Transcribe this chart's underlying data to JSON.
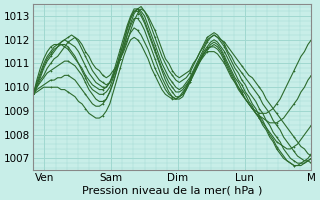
{
  "title": "",
  "xlabel": "Pression niveau de la mer( hPa )",
  "ylabel": "",
  "ylim": [
    1006.5,
    1013.5
  ],
  "xlim": [
    0,
    100
  ],
  "background_color": "#c8eee8",
  "grid_color": "#a0d8d0",
  "line_color": "#2d6b2d",
  "day_labels": [
    "Ven",
    "Sam",
    "Dim",
    "Lun",
    "M"
  ],
  "day_positions": [
    4,
    28,
    52,
    76,
    100
  ],
  "yticks": [
    1007,
    1008,
    1009,
    1010,
    1011,
    1012,
    1013
  ],
  "series": [
    [
      1009.7,
      1010.0,
      1010.3,
      1010.5,
      1010.8,
      1011.0,
      1011.2,
      1011.3,
      1011.5,
      1011.7,
      1011.9,
      1012.0,
      1012.1,
      1012.0,
      1011.8,
      1011.5,
      1011.3,
      1011.0,
      1010.8,
      1010.7,
      1010.5,
      1010.4,
      1010.5,
      1010.7,
      1010.9,
      1011.2,
      1011.5,
      1011.9,
      1012.4,
      1012.8,
      1013.1,
      1013.3,
      1013.2,
      1013.0,
      1012.7,
      1012.4,
      1012.0,
      1011.6,
      1011.2,
      1011.0,
      1010.7,
      1010.5,
      1010.4,
      1010.5,
      1010.6,
      1010.7,
      1011.0,
      1011.2,
      1011.5,
      1011.7,
      1012.0,
      1012.1,
      1012.2,
      1012.1,
      1012.0,
      1011.9,
      1011.7,
      1011.5,
      1011.3,
      1011.1,
      1010.9,
      1010.7,
      1010.5,
      1010.4,
      1010.2,
      1010.0,
      1009.8,
      1009.5,
      1009.3,
      1009.1,
      1008.9,
      1008.7,
      1008.5,
      1008.3,
      1008.1,
      1007.9,
      1007.7,
      1007.5,
      1007.4,
      1007.2,
      1007.1
    ],
    [
      1009.7,
      1010.1,
      1010.4,
      1010.8,
      1011.1,
      1011.3,
      1011.5,
      1011.7,
      1011.9,
      1012.0,
      1012.1,
      1012.2,
      1012.1,
      1011.9,
      1011.6,
      1011.3,
      1011.0,
      1010.7,
      1010.5,
      1010.3,
      1010.2,
      1010.1,
      1010.2,
      1010.5,
      1010.8,
      1011.2,
      1011.7,
      1012.2,
      1012.7,
      1013.1,
      1013.3,
      1013.4,
      1013.2,
      1012.9,
      1012.5,
      1012.1,
      1011.7,
      1011.3,
      1011.0,
      1010.7,
      1010.5,
      1010.3,
      1010.2,
      1010.3,
      1010.4,
      1010.6,
      1010.9,
      1011.2,
      1011.5,
      1011.8,
      1012.1,
      1012.2,
      1012.3,
      1012.2,
      1012.0,
      1011.8,
      1011.5,
      1011.3,
      1011.0,
      1010.8,
      1010.6,
      1010.4,
      1010.2,
      1010.0,
      1009.8,
      1009.6,
      1009.3,
      1009.1,
      1008.9,
      1008.6,
      1008.4,
      1008.2,
      1007.9,
      1007.7,
      1007.5,
      1007.3,
      1007.1,
      1007.0,
      1006.9,
      1006.9,
      1006.8
    ],
    [
      1009.7,
      1010.2,
      1010.6,
      1011.0,
      1011.3,
      1011.5,
      1011.7,
      1011.8,
      1011.9,
      1012.0,
      1011.9,
      1011.8,
      1011.7,
      1011.5,
      1011.2,
      1010.9,
      1010.6,
      1010.4,
      1010.2,
      1010.1,
      1010.0,
      1010.0,
      1010.2,
      1010.5,
      1010.9,
      1011.4,
      1011.9,
      1012.4,
      1012.9,
      1013.2,
      1013.3,
      1013.2,
      1013.0,
      1012.6,
      1012.2,
      1011.8,
      1011.4,
      1011.0,
      1010.7,
      1010.4,
      1010.2,
      1010.0,
      1009.9,
      1010.0,
      1010.2,
      1010.4,
      1010.7,
      1011.0,
      1011.3,
      1011.6,
      1011.9,
      1012.1,
      1012.2,
      1012.1,
      1011.9,
      1011.7,
      1011.4,
      1011.1,
      1010.8,
      1010.6,
      1010.3,
      1010.1,
      1009.8,
      1009.6,
      1009.4,
      1009.1,
      1008.9,
      1008.6,
      1008.4,
      1008.1,
      1007.9,
      1007.7,
      1007.4,
      1007.2,
      1007.0,
      1006.9,
      1006.8,
      1006.8,
      1006.8,
      1006.9,
      1007.0
    ],
    [
      1009.7,
      1010.3,
      1010.8,
      1011.2,
      1011.5,
      1011.7,
      1011.8,
      1011.8,
      1011.8,
      1011.7,
      1011.6,
      1011.4,
      1011.2,
      1011.0,
      1010.8,
      1010.5,
      1010.3,
      1010.1,
      1010.0,
      1009.9,
      1009.9,
      1010.0,
      1010.2,
      1010.6,
      1011.1,
      1011.6,
      1012.1,
      1012.6,
      1013.0,
      1013.3,
      1013.3,
      1013.1,
      1012.8,
      1012.4,
      1012.0,
      1011.6,
      1011.2,
      1010.8,
      1010.5,
      1010.2,
      1010.0,
      1009.8,
      1009.8,
      1009.9,
      1010.1,
      1010.3,
      1010.6,
      1010.9,
      1011.2,
      1011.5,
      1011.7,
      1011.9,
      1012.0,
      1011.9,
      1011.7,
      1011.5,
      1011.2,
      1010.9,
      1010.6,
      1010.3,
      1010.1,
      1009.8,
      1009.6,
      1009.3,
      1009.1,
      1008.8,
      1008.6,
      1008.3,
      1008.0,
      1007.8,
      1007.5,
      1007.3,
      1007.1,
      1006.9,
      1006.8,
      1006.7,
      1006.7,
      1006.7,
      1006.8,
      1006.9,
      1007.0
    ],
    [
      1009.7,
      1010.1,
      1010.5,
      1010.9,
      1011.2,
      1011.4,
      1011.6,
      1011.7,
      1011.8,
      1011.8,
      1011.7,
      1011.5,
      1011.3,
      1011.0,
      1010.7,
      1010.4,
      1010.1,
      1009.9,
      1009.8,
      1009.7,
      1009.7,
      1009.8,
      1010.0,
      1010.4,
      1010.9,
      1011.4,
      1011.9,
      1012.5,
      1012.9,
      1013.2,
      1013.2,
      1013.0,
      1012.7,
      1012.3,
      1011.9,
      1011.5,
      1011.1,
      1010.7,
      1010.3,
      1010.0,
      1009.8,
      1009.6,
      1009.6,
      1009.7,
      1009.9,
      1010.2,
      1010.5,
      1010.8,
      1011.1,
      1011.4,
      1011.6,
      1011.8,
      1011.9,
      1011.8,
      1011.6,
      1011.3,
      1011.0,
      1010.7,
      1010.4,
      1010.2,
      1009.9,
      1009.7,
      1009.4,
      1009.2,
      1008.9,
      1008.7,
      1008.4,
      1008.2,
      1007.9,
      1007.7,
      1007.4,
      1007.2,
      1007.0,
      1006.9,
      1006.8,
      1006.7,
      1006.7,
      1006.8,
      1006.9,
      1007.0,
      1007.2
    ],
    [
      1009.7,
      1010.0,
      1010.2,
      1010.4,
      1010.6,
      1010.7,
      1010.8,
      1010.9,
      1011.0,
      1011.1,
      1011.1,
      1011.0,
      1010.9,
      1010.7,
      1010.5,
      1010.2,
      1009.9,
      1009.7,
      1009.5,
      1009.4,
      1009.4,
      1009.5,
      1009.8,
      1010.2,
      1010.7,
      1011.2,
      1011.7,
      1012.2,
      1012.6,
      1012.9,
      1012.9,
      1012.7,
      1012.4,
      1012.0,
      1011.6,
      1011.2,
      1010.8,
      1010.4,
      1010.1,
      1009.8,
      1009.6,
      1009.5,
      1009.5,
      1009.6,
      1009.9,
      1010.2,
      1010.5,
      1010.8,
      1011.1,
      1011.4,
      1011.6,
      1011.7,
      1011.8,
      1011.7,
      1011.5,
      1011.2,
      1010.9,
      1010.6,
      1010.3,
      1010.0,
      1009.8,
      1009.5,
      1009.3,
      1009.1,
      1008.9,
      1008.7,
      1008.5,
      1008.3,
      1008.1,
      1007.9,
      1007.7,
      1007.6,
      1007.5,
      1007.4,
      1007.4,
      1007.5,
      1007.6,
      1007.8,
      1008.0,
      1008.2,
      1008.4
    ],
    [
      1009.7,
      1009.9,
      1010.0,
      1010.1,
      1010.2,
      1010.3,
      1010.3,
      1010.4,
      1010.4,
      1010.5,
      1010.5,
      1010.4,
      1010.3,
      1010.1,
      1009.9,
      1009.7,
      1009.5,
      1009.3,
      1009.2,
      1009.2,
      1009.3,
      1009.5,
      1009.8,
      1010.2,
      1010.7,
      1011.2,
      1011.6,
      1012.0,
      1012.3,
      1012.5,
      1012.4,
      1012.2,
      1011.9,
      1011.6,
      1011.2,
      1010.8,
      1010.5,
      1010.2,
      1009.9,
      1009.7,
      1009.6,
      1009.5,
      1009.6,
      1009.7,
      1010.0,
      1010.3,
      1010.6,
      1010.9,
      1011.2,
      1011.4,
      1011.6,
      1011.7,
      1011.7,
      1011.6,
      1011.4,
      1011.1,
      1010.8,
      1010.5,
      1010.2,
      1010.0,
      1009.7,
      1009.5,
      1009.3,
      1009.1,
      1008.9,
      1008.8,
      1008.7,
      1008.6,
      1008.5,
      1008.5,
      1008.5,
      1008.6,
      1008.7,
      1008.9,
      1009.1,
      1009.3,
      1009.5,
      1009.8,
      1010.0,
      1010.3,
      1010.5
    ],
    [
      1009.7,
      1009.8,
      1009.9,
      1010.0,
      1010.0,
      1010.0,
      1010.0,
      1010.0,
      1009.9,
      1009.9,
      1009.8,
      1009.7,
      1009.6,
      1009.4,
      1009.3,
      1009.1,
      1008.9,
      1008.8,
      1008.7,
      1008.7,
      1008.8,
      1009.0,
      1009.3,
      1009.8,
      1010.3,
      1010.8,
      1011.3,
      1011.7,
      1012.0,
      1012.1,
      1012.0,
      1011.8,
      1011.5,
      1011.2,
      1010.8,
      1010.5,
      1010.2,
      1009.9,
      1009.7,
      1009.6,
      1009.5,
      1009.5,
      1009.6,
      1009.8,
      1010.0,
      1010.3,
      1010.6,
      1010.9,
      1011.1,
      1011.3,
      1011.5,
      1011.5,
      1011.5,
      1011.4,
      1011.2,
      1011.0,
      1010.7,
      1010.4,
      1010.2,
      1009.9,
      1009.7,
      1009.5,
      1009.3,
      1009.1,
      1009.0,
      1008.9,
      1008.9,
      1008.9,
      1009.0,
      1009.1,
      1009.3,
      1009.5,
      1009.8,
      1010.1,
      1010.4,
      1010.7,
      1011.0,
      1011.3,
      1011.5,
      1011.8,
      1012.0
    ]
  ]
}
